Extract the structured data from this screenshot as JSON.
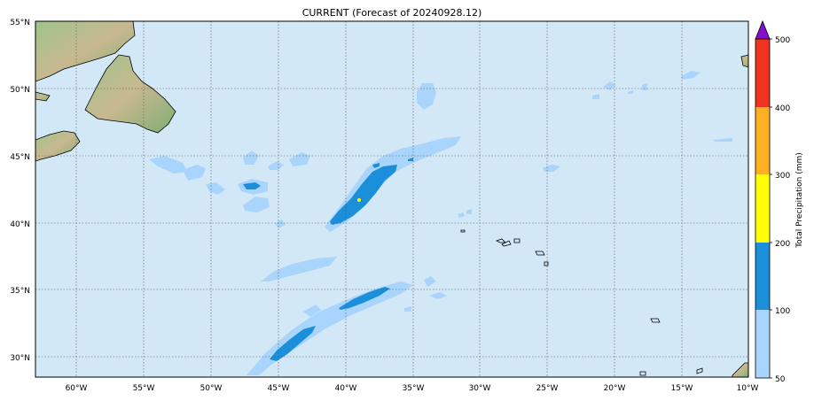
{
  "title": "CURRENT (Forecast of 20240928.12)",
  "map": {
    "lon_range": [
      -63,
      -10
    ],
    "lat_range": [
      28.5,
      55
    ],
    "lon_ticks": [
      "60°W",
      "55°W",
      "50°W",
      "45°W",
      "40°W",
      "35°W",
      "30°W",
      "25°W",
      "20°W",
      "15°W",
      "10°W"
    ],
    "lat_ticks": [
      "55°N",
      "50°N",
      "45°N",
      "40°N",
      "35°N",
      "30°N"
    ],
    "ocean_color": "#d3e8f6",
    "gridlines": true
  },
  "colorbar": {
    "label": "Total Precipitation (mm)",
    "ticks": [
      "50",
      "100",
      "200",
      "300",
      "400",
      "500"
    ],
    "levels": [
      50,
      100,
      200,
      300,
      400,
      500
    ],
    "colors": [
      "#a9d4fb",
      "#1c8fdb",
      "#ffff00",
      "#fdb120",
      "#ef3320"
    ],
    "extend_color": "#8410cc"
  }
}
